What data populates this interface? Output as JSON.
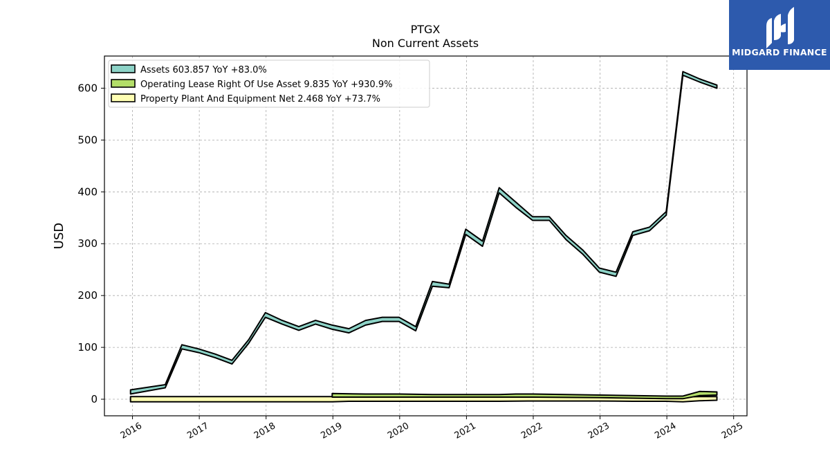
{
  "chart_data": {
    "type": "area",
    "title": "PTGX",
    "subtitle": "Non Current  Assets",
    "ylabel": "USD",
    "xlabel": "",
    "xlim": [
      2015.58,
      2025.2
    ],
    "ylim": [
      -32,
      662
    ],
    "yticks": [
      0,
      100,
      200,
      300,
      400,
      500,
      600
    ],
    "xticks": [
      2016,
      2017,
      2018,
      2019,
      2020,
      2021,
      2022,
      2023,
      2024,
      2025
    ],
    "grid": true,
    "legend_position": "top-left",
    "series": [
      {
        "name": "Assets  603.857 YoY +83.0%",
        "color": "#8dd3c7",
        "x": [
          2015.97,
          2016.49,
          2016.74,
          2016.99,
          2017.24,
          2017.49,
          2017.74,
          2017.99,
          2018.24,
          2018.49,
          2018.74,
          2018.99,
          2019.24,
          2019.49,
          2019.74,
          2019.99,
          2020.24,
          2020.49,
          2020.74,
          2020.99,
          2021.24,
          2021.49,
          2021.74,
          2021.99,
          2022.24,
          2022.49,
          2022.74,
          2022.99,
          2023.24,
          2023.49,
          2023.74,
          2023.99,
          2024.24,
          2024.49,
          2024.75
        ],
        "lower": [
          10,
          22,
          97,
          90,
          80,
          68,
          108,
          158,
          145,
          133,
          145,
          135,
          128,
          143,
          150,
          150,
          132,
          218,
          215,
          318,
          295,
          398,
          370,
          345,
          345,
          308,
          280,
          245,
          237,
          316,
          325,
          355,
          625,
          612,
          600
        ],
        "upper": [
          18,
          28,
          105,
          97,
          87,
          75,
          115,
          167,
          152,
          140,
          152,
          143,
          136,
          152,
          158,
          158,
          140,
          227,
          222,
          328,
          305,
          408,
          380,
          352,
          352,
          316,
          288,
          253,
          245,
          323,
          332,
          362,
          632,
          618,
          606
        ]
      },
      {
        "name": "Operating Lease Right Of Use Asset  9.835 YoY +930.9%",
        "color": "#b3de69",
        "x": [
          2018.99,
          2019.49,
          2019.99,
          2020.49,
          2020.99,
          2021.49,
          2021.74,
          2021.99,
          2022.49,
          2022.99,
          2023.49,
          2023.99,
          2024.24,
          2024.49,
          2024.75
        ],
        "lower": [
          4,
          4,
          4,
          4,
          4,
          4,
          4,
          4,
          3.5,
          3,
          2,
          1,
          1,
          7,
          8
        ],
        "upper": [
          11,
          10,
          10,
          9,
          9,
          9,
          10,
          10,
          9,
          8,
          7,
          6,
          6,
          15,
          14
        ]
      },
      {
        "name": "Property Plant And Equipment Net  2.468 YoY +73.7%",
        "color": "#ffffb3",
        "x": [
          2015.97,
          2016.49,
          2016.99,
          2017.49,
          2017.99,
          2018.49,
          2018.99,
          2019.24,
          2019.49,
          2019.99,
          2020.49,
          2020.99,
          2021.49,
          2021.99,
          2022.49,
          2022.99,
          2023.49,
          2023.99,
          2024.24,
          2024.49,
          2024.75
        ],
        "lower": [
          -5,
          -5,
          -5,
          -5,
          -5,
          -5,
          -5,
          -4,
          -4,
          -4,
          -4,
          -4,
          -4,
          -3.5,
          -3.5,
          -3.5,
          -4,
          -4,
          -5,
          -3,
          -2
        ],
        "upper": [
          5,
          5,
          5,
          5,
          5,
          5,
          5,
          5,
          5,
          5,
          5,
          5,
          5,
          5,
          5,
          5,
          4.5,
          4.5,
          4.5,
          5,
          5
        ]
      }
    ]
  },
  "logo": {
    "text": "MIDGARD FINANCE",
    "background": "#2d5aad"
  }
}
